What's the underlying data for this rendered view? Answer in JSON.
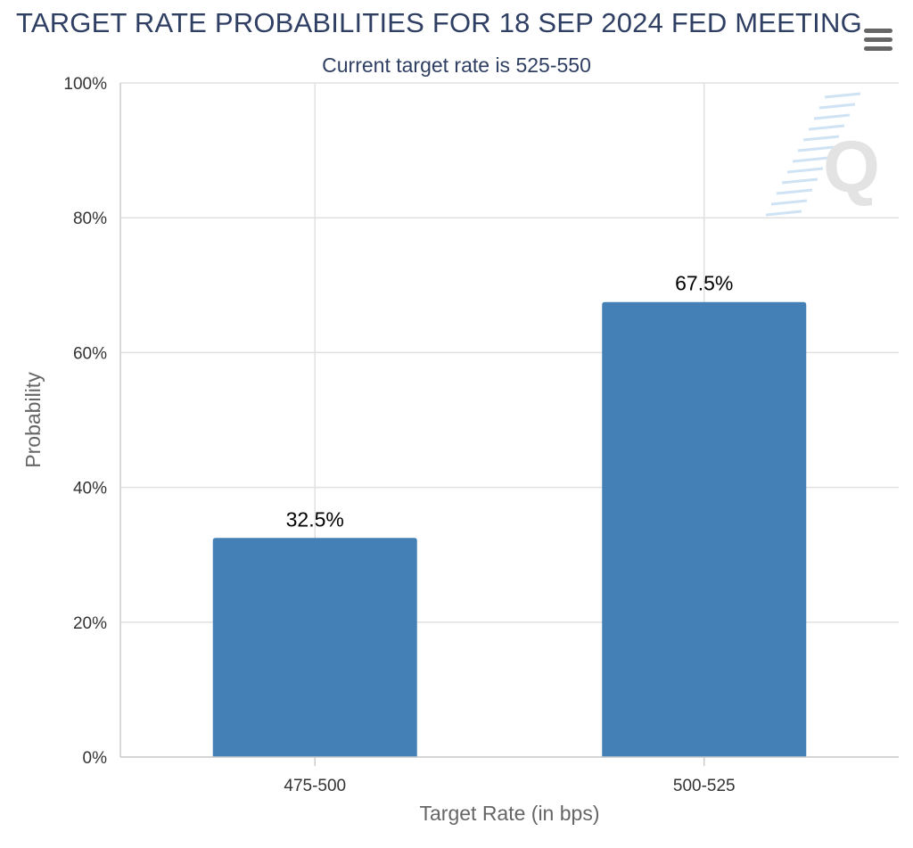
{
  "chart_data": {
    "type": "bar",
    "title": "TARGET RATE PROBABILITIES FOR 18 SEP 2024 FED MEETING",
    "subtitle": "Current target rate is 525-550",
    "categories": [
      "475-500",
      "500-525"
    ],
    "values": [
      32.5,
      67.5
    ],
    "data_labels": [
      "32.5%",
      "67.5%"
    ],
    "xlabel": "Target Rate (in bps)",
    "ylabel": "Probability",
    "ylim": [
      0,
      100
    ],
    "yticks": [
      0,
      20,
      40,
      60,
      80,
      100
    ],
    "ytick_labels": [
      "0%",
      "20%",
      "40%",
      "60%",
      "80%",
      "100%"
    ],
    "grid": true,
    "legend": "none",
    "bar_color": "#4480b5",
    "grid_color": "#e0e0e0",
    "watermark": "Q"
  },
  "toolbar": {
    "menu_icon": "hamburger-menu-icon"
  }
}
